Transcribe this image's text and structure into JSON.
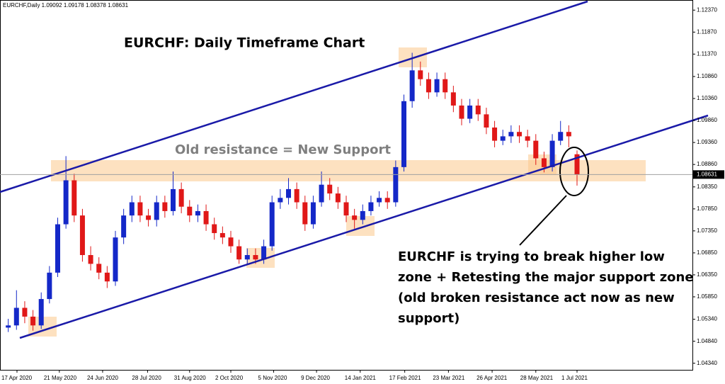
{
  "chart_data": {
    "type": "candlestick",
    "header": "EURCHF,Daily  1.09092 1.09178 1.08378 1.08631",
    "title": "EURCHF: Daily Timeframe Chart",
    "annotation": "Old resistance = New Support",
    "callout": [
      "EURCHF is trying to break higher low",
      "zone + Retesting the major support zone",
      "(old broken resistance act now as new",
      "support)"
    ],
    "x": [
      1,
      2,
      3,
      4,
      5,
      6,
      7,
      8,
      9,
      10,
      11,
      12,
      13,
      14,
      15,
      16,
      17,
      18,
      19,
      20,
      21,
      22,
      23,
      24,
      25,
      26,
      27,
      28,
      29,
      30,
      31,
      32,
      33,
      34,
      35,
      36,
      37,
      38,
      39,
      40,
      41,
      42,
      43,
      44,
      45,
      46,
      47,
      48,
      49,
      50,
      51,
      52,
      53,
      54,
      55,
      56,
      57,
      58,
      59,
      60,
      61,
      62,
      63,
      64,
      65,
      66,
      67,
      68,
      69,
      70
    ],
    "open": [
      1.0515,
      1.052,
      1.056,
      1.054,
      1.052,
      1.058,
      1.064,
      1.075,
      1.085,
      1.077,
      1.068,
      1.066,
      1.064,
      1.062,
      1.072,
      1.077,
      1.08,
      1.077,
      1.076,
      1.08,
      1.078,
      1.083,
      1.079,
      1.077,
      1.078,
      1.075,
      1.073,
      1.072,
      1.07,
      1.067,
      1.068,
      1.067,
      1.07,
      1.08,
      1.081,
      1.083,
      1.08,
      1.075,
      1.08,
      1.084,
      1.082,
      1.08,
      1.077,
      1.076,
      1.078,
      1.08,
      1.081,
      1.08,
      1.088,
      1.103,
      1.11,
      1.108,
      1.105,
      1.108,
      1.105,
      1.102,
      1.099,
      1.102,
      1.1,
      1.097,
      1.094,
      1.095,
      1.096,
      1.095,
      1.094,
      1.09,
      1.088,
      1.094,
      1.096,
      1.09092
    ],
    "high": [
      1.0535,
      1.06,
      1.0575,
      1.0555,
      1.0595,
      1.0655,
      1.0765,
      1.0905,
      1.0865,
      1.0785,
      1.07,
      1.0675,
      1.0655,
      1.0735,
      1.0785,
      1.0815,
      1.0815,
      1.0785,
      1.0815,
      1.0815,
      1.087,
      1.0845,
      1.0805,
      1.0795,
      1.0795,
      1.0765,
      1.0745,
      1.0735,
      1.0715,
      1.0695,
      1.0695,
      1.0715,
      1.0815,
      1.083,
      1.0855,
      1.0845,
      1.0815,
      1.0815,
      1.087,
      1.0855,
      1.0835,
      1.0815,
      1.0785,
      1.0795,
      1.0815,
      1.0825,
      1.0825,
      1.0895,
      1.1045,
      1.114,
      1.112,
      1.1095,
      1.1095,
      1.1095,
      1.1065,
      1.1035,
      1.1035,
      1.1035,
      1.1015,
      1.0985,
      1.0965,
      1.0975,
      1.0975,
      1.0965,
      1.0955,
      1.0915,
      1.0955,
      1.0985,
      1.0975,
      1.09178
    ],
    "low": [
      1.0505,
      1.051,
      1.0525,
      1.0508,
      1.0512,
      1.057,
      1.063,
      1.074,
      1.0755,
      1.0665,
      1.0645,
      1.0625,
      1.0605,
      1.061,
      1.0705,
      1.0755,
      1.0755,
      1.0745,
      1.0745,
      1.0765,
      1.077,
      1.0775,
      1.0755,
      1.0755,
      1.0735,
      1.0715,
      1.0705,
      1.0685,
      1.066,
      1.066,
      1.066,
      1.066,
      1.069,
      1.0785,
      1.0795,
      1.0785,
      1.0735,
      1.074,
      1.079,
      1.0805,
      1.0785,
      1.0755,
      1.074,
      1.075,
      1.077,
      1.079,
      1.0785,
      1.079,
      1.087,
      1.1015,
      1.1065,
      1.1035,
      1.104,
      1.1035,
      1.1005,
      1.0975,
      1.098,
      1.0985,
      1.0955,
      1.0925,
      1.093,
      1.0935,
      1.0935,
      1.0925,
      1.0885,
      1.0868,
      1.087,
      1.093,
      1.0925,
      1.08378
    ],
    "close": [
      1.052,
      1.056,
      1.054,
      1.052,
      1.058,
      1.064,
      1.075,
      1.085,
      1.077,
      1.068,
      1.066,
      1.064,
      1.062,
      1.072,
      1.077,
      1.08,
      1.077,
      1.076,
      1.08,
      1.078,
      1.083,
      1.079,
      1.077,
      1.078,
      1.075,
      1.073,
      1.072,
      1.07,
      1.067,
      1.068,
      1.067,
      1.07,
      1.08,
      1.081,
      1.083,
      1.08,
      1.075,
      1.08,
      1.084,
      1.082,
      1.08,
      1.077,
      1.076,
      1.078,
      1.08,
      1.081,
      1.08,
      1.088,
      1.103,
      1.11,
      1.108,
      1.105,
      1.108,
      1.105,
      1.102,
      1.099,
      1.102,
      1.1,
      1.097,
      1.094,
      1.095,
      1.096,
      1.095,
      1.094,
      1.09,
      1.088,
      1.094,
      1.096,
      1.095,
      1.08631
    ],
    "up_color": "#1428c8",
    "down_color": "#e01818",
    "current_price_line": true,
    "xlim": [
      0,
      84
    ],
    "ylim": [
      1.0419,
      1.126
    ],
    "xticks": [
      {
        "value": 2.06,
        "label": "17 Apr 2020"
      },
      {
        "value": 7.2,
        "label": "21 May 2020"
      },
      {
        "value": 12.45,
        "label": "24 Jun 2020"
      },
      {
        "value": 17.9,
        "label": "28 Jul 2020"
      },
      {
        "value": 23,
        "label": "31 Aug 2020"
      },
      {
        "value": 28,
        "label": "2 Oct 2020"
      },
      {
        "value": 33.2,
        "label": "5 Nov 2020"
      },
      {
        "value": 38.4,
        "label": "9 Dec 2020"
      },
      {
        "value": 43.7,
        "label": "14 Jan 2021"
      },
      {
        "value": 49.1,
        "label": "17 Feb 2021"
      },
      {
        "value": 54.4,
        "label": "23 Mar 2021"
      },
      {
        "value": 59.7,
        "label": "26 Apr 2021"
      },
      {
        "value": 65,
        "label": "28 May 2021"
      },
      {
        "value": 70,
        "label": "1 Jul 2021"
      }
    ],
    "yticks": [
      {
        "value": 1.1237,
        "label": "1.12370"
      },
      {
        "value": 1.1187,
        "label": "1.11870"
      },
      {
        "value": 1.1137,
        "label": "1.11370"
      },
      {
        "value": 1.1086,
        "label": "1.10860"
      },
      {
        "value": 1.1036,
        "label": "1.10360"
      },
      {
        "value": 1.0986,
        "label": "1.09860"
      },
      {
        "value": 1.0936,
        "label": "1.09360"
      },
      {
        "value": 1.0886,
        "label": "1.08860"
      },
      {
        "value": 1.0835,
        "label": "1.08350"
      },
      {
        "value": 1.0785,
        "label": "1.07850"
      },
      {
        "value": 1.0735,
        "label": "1.07350"
      },
      {
        "value": 1.0685,
        "label": "1.06850"
      },
      {
        "value": 1.0635,
        "label": "1.06350"
      },
      {
        "value": 1.0585,
        "label": "1.05850"
      },
      {
        "value": 1.0534,
        "label": "1.05340"
      },
      {
        "value": 1.0484,
        "label": "1.04840"
      },
      {
        "value": 1.0434,
        "label": "1.04340"
      }
    ]
  }
}
